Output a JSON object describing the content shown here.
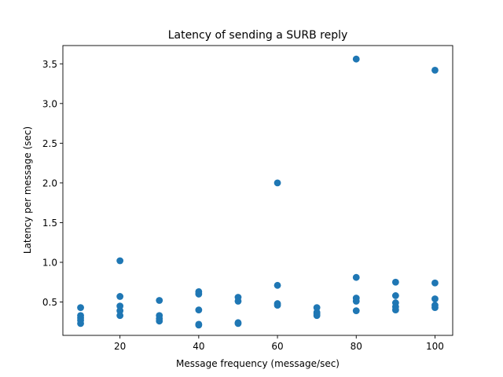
{
  "chart_data": {
    "type": "scatter",
    "title": "Latency of sending a SURB reply",
    "xlabel": "Message frequency (message/sec)",
    "ylabel": "Latency per message (sec)",
    "xlim": [
      5.5,
      104.5
    ],
    "ylim": [
      0.08,
      3.73
    ],
    "xticks": [
      20,
      40,
      60,
      80,
      100
    ],
    "yticks": [
      0.5,
      1.0,
      1.5,
      2.0,
      2.5,
      3.0,
      3.5
    ],
    "ytick_labels": [
      "0.5",
      "1.0",
      "1.5",
      "2.0",
      "2.5",
      "3.0",
      "3.5"
    ],
    "grid": false,
    "color": "#1f77b4",
    "points": [
      {
        "x": 10,
        "y": 0.43
      },
      {
        "x": 10,
        "y": 0.33
      },
      {
        "x": 10,
        "y": 0.3
      },
      {
        "x": 10,
        "y": 0.27
      },
      {
        "x": 10,
        "y": 0.23
      },
      {
        "x": 20,
        "y": 1.02
      },
      {
        "x": 20,
        "y": 0.57
      },
      {
        "x": 20,
        "y": 0.45
      },
      {
        "x": 20,
        "y": 0.39
      },
      {
        "x": 20,
        "y": 0.33
      },
      {
        "x": 30,
        "y": 0.52
      },
      {
        "x": 30,
        "y": 0.33
      },
      {
        "x": 30,
        "y": 0.29
      },
      {
        "x": 30,
        "y": 0.26
      },
      {
        "x": 40,
        "y": 0.63
      },
      {
        "x": 40,
        "y": 0.6
      },
      {
        "x": 40,
        "y": 0.4
      },
      {
        "x": 40,
        "y": 0.22
      },
      {
        "x": 40,
        "y": 0.21
      },
      {
        "x": 50,
        "y": 0.56
      },
      {
        "x": 50,
        "y": 0.51
      },
      {
        "x": 50,
        "y": 0.24
      },
      {
        "x": 50,
        "y": 0.23
      },
      {
        "x": 60,
        "y": 2.0
      },
      {
        "x": 60,
        "y": 0.71
      },
      {
        "x": 60,
        "y": 0.48
      },
      {
        "x": 60,
        "y": 0.46
      },
      {
        "x": 70,
        "y": 0.43
      },
      {
        "x": 70,
        "y": 0.37
      },
      {
        "x": 70,
        "y": 0.35
      },
      {
        "x": 70,
        "y": 0.33
      },
      {
        "x": 80,
        "y": 3.56
      },
      {
        "x": 80,
        "y": 0.81
      },
      {
        "x": 80,
        "y": 0.55
      },
      {
        "x": 80,
        "y": 0.51
      },
      {
        "x": 80,
        "y": 0.39
      },
      {
        "x": 90,
        "y": 0.75
      },
      {
        "x": 90,
        "y": 0.58
      },
      {
        "x": 90,
        "y": 0.49
      },
      {
        "x": 90,
        "y": 0.44
      },
      {
        "x": 90,
        "y": 0.4
      },
      {
        "x": 100,
        "y": 3.42
      },
      {
        "x": 100,
        "y": 0.74
      },
      {
        "x": 100,
        "y": 0.54
      },
      {
        "x": 100,
        "y": 0.46
      },
      {
        "x": 100,
        "y": 0.43
      }
    ]
  }
}
